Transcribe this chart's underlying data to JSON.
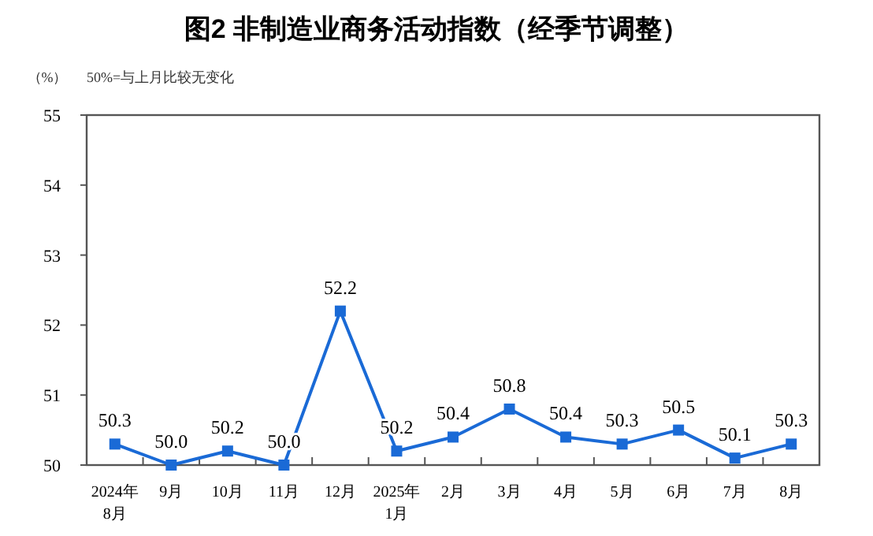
{
  "chart_data": {
    "type": "line",
    "title": "图2  非制造业商务活动指数（经季节调整）",
    "ylabel": "（%）",
    "annotations": [
      "50%=与上月比较无变化"
    ],
    "categories": [
      "2024年\n8月",
      "9月",
      "10月",
      "11月",
      "12月",
      "2025年\n1月",
      "2月",
      "3月",
      "4月",
      "5月",
      "6月",
      "7月",
      "8月"
    ],
    "series": [
      {
        "color": "#1a6ad6",
        "values": [
          50.3,
          50.0,
          50.2,
          50.0,
          52.2,
          50.2,
          50.4,
          50.8,
          50.4,
          50.3,
          50.5,
          50.1,
          50.3
        ],
        "value_labels": [
          "50.3",
          "50.0",
          "50.2",
          "50.0",
          "52.2",
          "50.2",
          "50.4",
          "50.8",
          "50.4",
          "50.3",
          "50.5",
          "50.1",
          "50.3"
        ]
      }
    ],
    "ylim": [
      50,
      55
    ],
    "yticks": [
      50,
      51,
      52,
      53,
      54,
      55
    ],
    "marker": "square",
    "line_style": "solid",
    "grid": false
  }
}
